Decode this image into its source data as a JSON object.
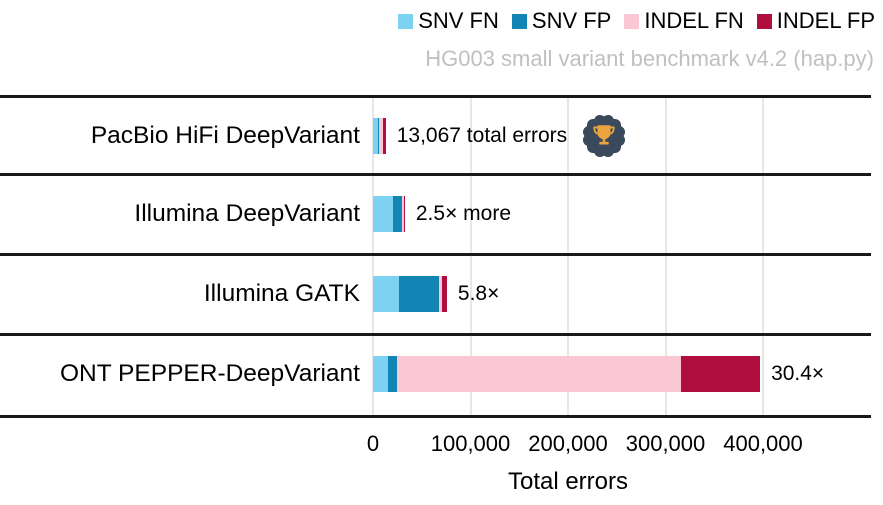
{
  "header": {
    "subtitle": "HG003 small variant benchmark v4.2 (hap.py)"
  },
  "legend": {
    "items": [
      {
        "label": "SNV FN",
        "color": "#7dd1f1",
        "icon": "legend-swatch-square"
      },
      {
        "label": "SNV FP",
        "color": "#1285b4",
        "icon": "legend-swatch-square"
      },
      {
        "label": "INDEL FN",
        "color": "#f9c8d4",
        "icon": "legend-swatch-square"
      },
      {
        "label": "INDEL FP",
        "color": "#b00f3d",
        "icon": "legend-swatch-square"
      }
    ]
  },
  "chart_data": {
    "type": "bar",
    "orientation": "horizontal",
    "stacked": true,
    "subtitle": "HG003 small variant benchmark v4.2 (hap.py)",
    "categories": [
      "PacBio HiFi DeepVariant",
      "Illumina DeepVariant",
      "Illumina GATK",
      "ONT PEPPER-DeepVariant"
    ],
    "series": [
      {
        "name": "SNV FN",
        "color": "#7dd1f1",
        "values": [
          5000,
          20500,
          26500,
          15000
        ]
      },
      {
        "name": "SNV FP",
        "color": "#1285b4",
        "values": [
          1500,
          9200,
          41000,
          10000
        ]
      },
      {
        "name": "INDEL FN",
        "color": "#f9c8d4",
        "values": [
          3500,
          2000,
          3000,
          291000
        ]
      },
      {
        "name": "INDEL FP",
        "color": "#b00f3d",
        "values": [
          3067,
          1000,
          5300,
          81000
        ]
      }
    ],
    "totals": [
      13067,
      32700,
      75800,
      397000
    ],
    "annotations": [
      "13,067 total errors",
      "2.5× more",
      "5.8×",
      "30.4×"
    ],
    "winner_badge": {
      "row": 0,
      "icon": "trophy-badge",
      "seal_color": "#3a4a5c",
      "trophy_color": "#e9a43e"
    },
    "xlabel": "Total errors",
    "x_tick_values": [
      0,
      100000,
      200000,
      300000,
      400000
    ],
    "x_tick_labels": [
      "0",
      "100,000",
      "200,000",
      "300,000",
      "400,000"
    ],
    "xlim": [
      0,
      523000
    ],
    "grid": true,
    "legend_position": "top-right"
  },
  "layout_rows": {
    "tops": [
      96,
      174,
      254,
      334
    ]
  }
}
